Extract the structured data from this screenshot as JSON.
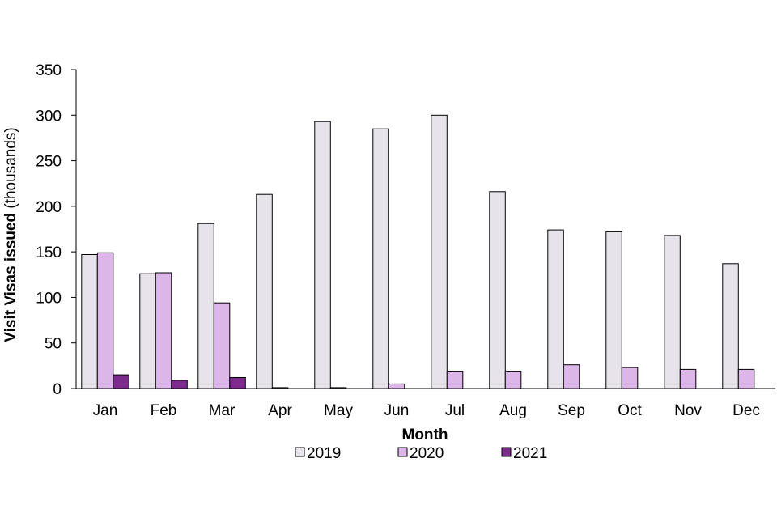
{
  "chart_data": {
    "type": "bar",
    "title": "",
    "xlabel": "Month",
    "ylabel_bold": "Visit Visas issued",
    "ylabel_rest": " (thousands)",
    "ylim": [
      0,
      350
    ],
    "yticks": [
      0,
      50,
      100,
      150,
      200,
      250,
      300,
      350
    ],
    "categories": [
      "Jan",
      "Feb",
      "Mar",
      "Apr",
      "May",
      "Jun",
      "Jul",
      "Aug",
      "Sep",
      "Oct",
      "Nov",
      "Dec"
    ],
    "series": [
      {
        "name": "2019",
        "color": "#e6e3ea",
        "values": [
          147,
          126,
          181,
          213,
          293,
          285,
          300,
          216,
          174,
          172,
          168,
          137
        ]
      },
      {
        "name": "2020",
        "color": "#dcb6e8",
        "values": [
          149,
          127,
          94,
          1,
          1,
          5,
          19,
          19,
          26,
          23,
          21,
          21
        ]
      },
      {
        "name": "2021",
        "color": "#7a2b8c",
        "values": [
          15,
          9,
          12,
          null,
          null,
          null,
          null,
          null,
          null,
          null,
          null,
          null
        ]
      }
    ],
    "grid": false,
    "legend_position": "bottom"
  }
}
